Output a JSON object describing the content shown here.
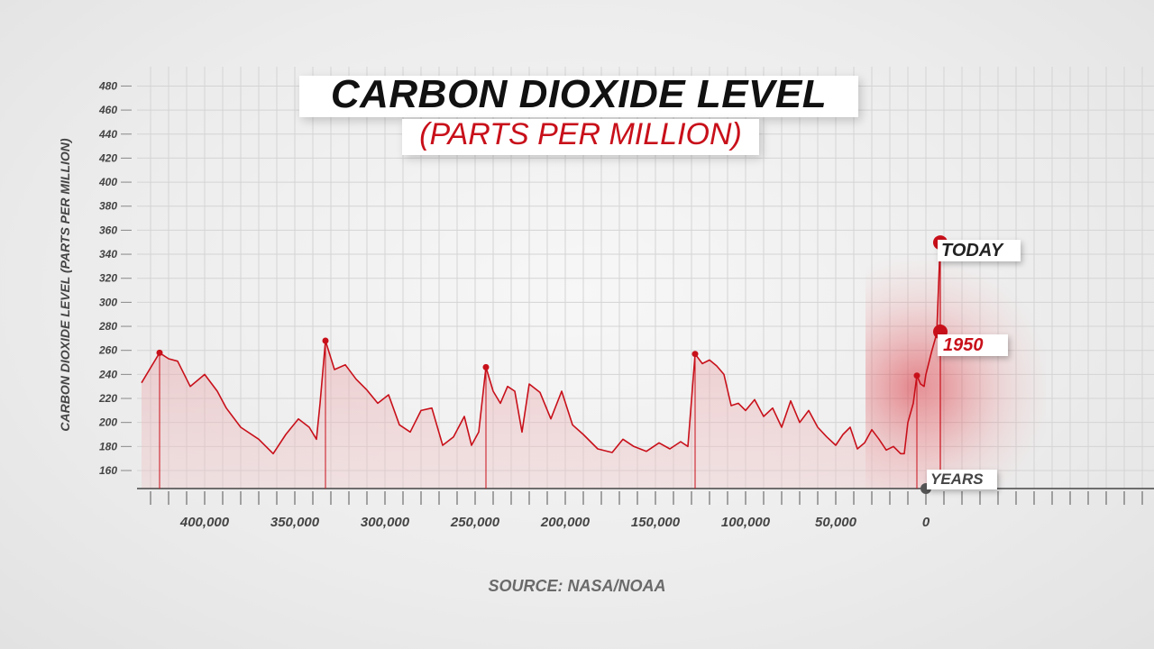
{
  "chart_data": {
    "type": "area",
    "title": "CARBON DIOXIDE LEVEL",
    "subtitle": "(PARTS PER MILLION)",
    "ylabel": "CARBON DIOXIDE LEVEL (PARTS PER MILLION)",
    "xlabel": "YEARS",
    "source": "SOURCE: NASA/NOAA",
    "xlim": [
      435000,
      -22000
    ],
    "ylim": [
      146,
      480
    ],
    "y_ticks": [
      160,
      180,
      200,
      220,
      240,
      260,
      280,
      300,
      320,
      340,
      360,
      380,
      400,
      420,
      440,
      460,
      480
    ],
    "x_ticks": [
      400000,
      350000,
      300000,
      250000,
      200000,
      150000,
      100000,
      50000,
      0
    ],
    "x_tick_labels": [
      "400,000",
      "350,000",
      "300,000",
      "250,000",
      "200,000",
      "150,000",
      "100,000",
      "50,000",
      "0"
    ],
    "grid": true,
    "series": [
      {
        "x": [
          435000,
          425000,
          420000,
          415000,
          408000,
          400000,
          393000,
          388000,
          380000,
          370000,
          362000,
          355000,
          348000,
          342000,
          338000,
          336000,
          333000,
          328000,
          322000,
          316000,
          310000,
          304000,
          298000,
          292000,
          286000,
          280000,
          274000,
          268000,
          262000,
          256000,
          252000,
          248000,
          244000,
          240000,
          236000,
          232000,
          228000,
          224000,
          220000,
          214000,
          208000,
          202000,
          196000,
          190000,
          182000,
          174000,
          168000,
          162000,
          155000,
          148000,
          142000,
          136000,
          132000,
          128000,
          124000,
          120000,
          116000,
          112000,
          108000,
          104000,
          100000,
          95000,
          90000,
          85000,
          80000,
          75000,
          70000,
          65000,
          60000,
          55000,
          50000,
          46000,
          42000,
          38000,
          34000,
          30000,
          26000,
          22000,
          18000,
          14000,
          12000,
          10000,
          7000,
          5000,
          3000,
          1000,
          0,
          -3000,
          -6000,
          -8000
        ],
        "y": [
          233,
          258,
          253,
          251,
          230,
          240,
          226,
          212,
          196,
          186,
          174,
          190,
          203,
          196,
          186,
          216,
          268,
          244,
          248,
          236,
          227,
          216,
          223,
          198,
          192,
          210,
          212,
          181,
          188,
          205,
          181,
          192,
          246,
          226,
          216,
          230,
          226,
          192,
          232,
          225,
          203,
          226,
          198,
          190,
          178,
          175,
          186,
          180,
          176,
          183,
          178,
          184,
          180,
          257,
          249,
          252,
          247,
          240,
          214,
          216,
          210,
          219,
          205,
          212,
          196,
          218,
          200,
          210,
          196,
          188,
          181,
          190,
          196,
          178,
          183,
          194,
          186,
          177,
          180,
          174,
          174,
          200,
          216,
          239,
          232,
          230,
          240,
          258,
          274,
          352
        ]
      }
    ],
    "annotations": [
      {
        "label": "TODAY",
        "x": -8000,
        "y": 352
      },
      {
        "label": "1950",
        "x": -6000,
        "y": 274
      },
      {
        "label": "YEARS",
        "x": 0,
        "y": 146
      }
    ],
    "peak_markers": [
      {
        "x": 425000,
        "y": 258
      },
      {
        "x": 333000,
        "y": 268
      },
      {
        "x": 244000,
        "y": 246
      },
      {
        "x": 128000,
        "y": 257
      },
      {
        "x": 5000,
        "y": 239
      }
    ],
    "colors": {
      "line": "#c8101a",
      "fill": "#e8a0a4",
      "grid": "#d4d4d4",
      "text": "#444444"
    }
  }
}
